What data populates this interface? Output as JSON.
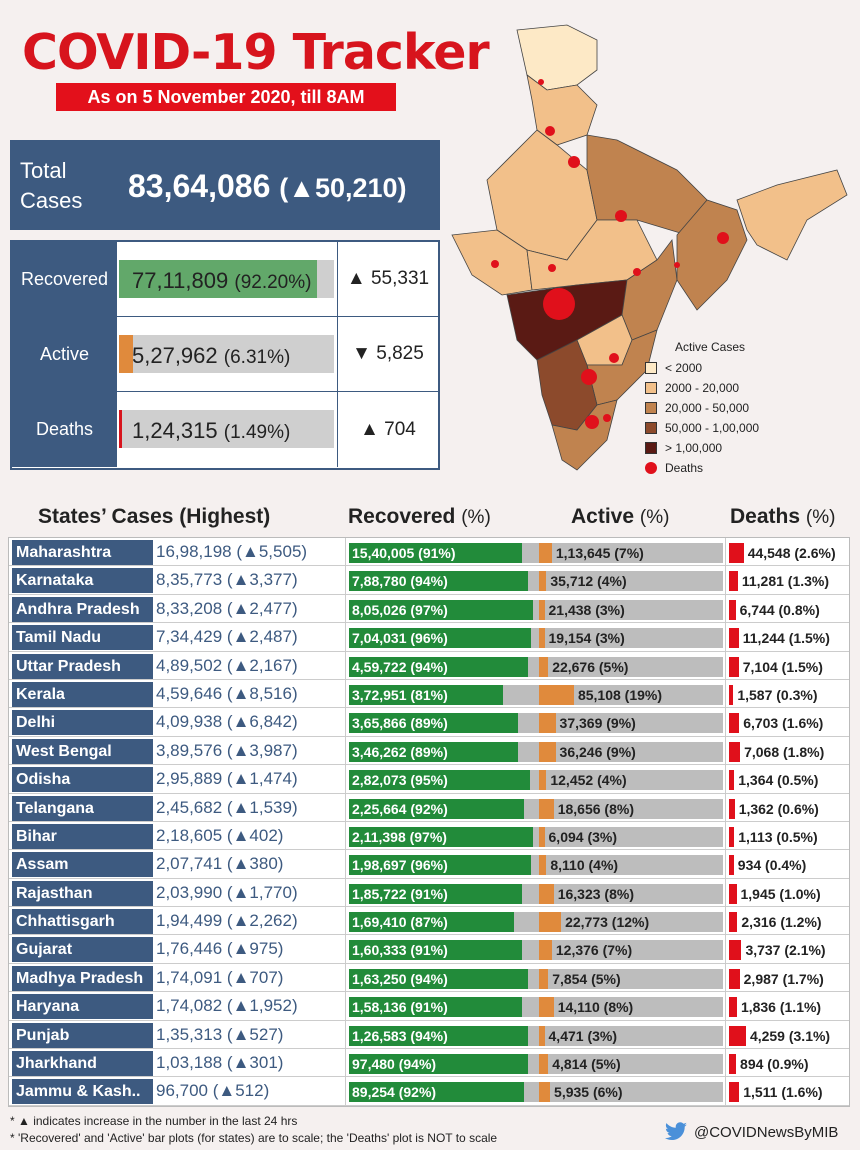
{
  "header": {
    "title": "COVID-19 Tracker",
    "subtitle": "As on 5 November 2020, till 8AM"
  },
  "total": {
    "label": "Total Cases",
    "value": "83,64,086",
    "delta": "(▲50,210)"
  },
  "summary": [
    {
      "label": "Recovered",
      "value": "77,11,809",
      "pct": "(92.20%)",
      "fraction": 0.922,
      "color": "#62a86a",
      "delta": "▲ 55,331"
    },
    {
      "label": "Active",
      "value": "5,27,962",
      "pct": "(6.31%)",
      "fraction": 0.0631,
      "color": "#e08a3c",
      "delta": "▼ 5,825"
    },
    {
      "label": "Deaths",
      "value": "1,24,315",
      "pct": "(1.49%)",
      "fraction": 0.0149,
      "color": "#d7141d",
      "delta": "▲ 704"
    }
  ],
  "legend": {
    "title": "Active Cases",
    "items": [
      {
        "label": "< 2000",
        "color": "#fde9c6"
      },
      {
        "label": "2000 - 20,000",
        "color": "#f2c08a"
      },
      {
        "label": "20,000 - 50,000",
        "color": "#c0834f"
      },
      {
        "label": "50,000 - 1,00,000",
        "color": "#8c4a2c"
      },
      {
        "label": "> 1,00,000",
        "color": "#5a1a14"
      }
    ],
    "deaths_label": "Deaths"
  },
  "table_headers": {
    "states": "States’ Cases (Highest)",
    "recovered": "Recovered",
    "active": "Active",
    "deaths": "Deaths",
    "pct": "(%)"
  },
  "chart_data": {
    "type": "bar",
    "categories": [
      "Maharashtra",
      "Karnataka",
      "Andhra Pradesh",
      "Tamil Nadu",
      "Uttar Pradesh",
      "Kerala",
      "Delhi",
      "West Bengal",
      "Odisha",
      "Telangana",
      "Bihar",
      "Assam",
      "Rajasthan",
      "Chhattisgarh",
      "Gujarat",
      "Madhya Pradesh",
      "Haryana",
      "Punjab",
      "Jharkhand",
      "Jammu & Kash.."
    ],
    "cases": [
      "16,98,198",
      "8,35,773",
      "8,33,208",
      "7,34,429",
      "4,89,502",
      "4,59,646",
      "4,09,938",
      "3,89,576",
      "2,95,889",
      "2,45,682",
      "2,18,605",
      "2,07,741",
      "2,03,990",
      "1,94,499",
      "1,76,446",
      "1,74,091",
      "1,74,082",
      "1,35,313",
      "1,03,188",
      "96,700"
    ],
    "cases_delta": [
      "▲5,505",
      "▲3,377",
      "▲2,477",
      "▲2,487",
      "▲2,167",
      "▲8,516",
      "▲6,842",
      "▲3,987",
      "▲1,474",
      "▲1,539",
      "▲402",
      "▲380",
      "▲1,770",
      "▲2,262",
      "▲975",
      "▲707",
      "▲1,952",
      "▲527",
      "▲301",
      "▲512"
    ],
    "series": [
      {
        "name": "Recovered",
        "labels": [
          "15,40,005 (91%)",
          "7,88,780 (94%)",
          "8,05,026 (97%)",
          "7,04,031 (96%)",
          "4,59,722 (94%)",
          "3,72,951 (81%)",
          "3,65,866 (89%)",
          "3,46,262 (89%)",
          "2,82,073 (95%)",
          "2,25,664 (92%)",
          "2,11,398 (97%)",
          "1,98,697 (96%)",
          "1,85,722 (91%)",
          "1,69,410 (87%)",
          "1,60,333 (91%)",
          "1,63,250 (94%)",
          "1,58,136 (91%)",
          "1,26,583 (94%)",
          "97,480 (94%)",
          "89,254 (92%)"
        ],
        "values": [
          91,
          94,
          97,
          96,
          94,
          81,
          89,
          89,
          95,
          92,
          97,
          96,
          91,
          87,
          91,
          94,
          91,
          94,
          94,
          92
        ],
        "color": "#228b3a"
      },
      {
        "name": "Active",
        "labels": [
          "1,13,645 (7%)",
          "35,712 (4%)",
          "21,438 (3%)",
          "19,154 (3%)",
          "22,676 (5%)",
          "85,108 (19%)",
          "37,369 (9%)",
          "36,246 (9%)",
          "12,452 (4%)",
          "18,656 (8%)",
          "6,094 (3%)",
          "8,110 (4%)",
          "16,323 (8%)",
          "22,773 (12%)",
          "12,376 (7%)",
          "7,854 (5%)",
          "14,110 (8%)",
          "4,471 (3%)",
          "4,814 (5%)",
          "5,935 (6%)"
        ],
        "values": [
          7,
          4,
          3,
          3,
          5,
          19,
          9,
          9,
          4,
          8,
          3,
          4,
          8,
          12,
          7,
          5,
          8,
          3,
          5,
          6
        ],
        "color": "#e08a3c"
      },
      {
        "name": "Deaths",
        "labels": [
          "44,548 (2.6%)",
          "11,281 (1.3%)",
          "6,744 (0.8%)",
          "11,244 (1.5%)",
          "7,104 (1.5%)",
          "1,587 (0.3%)",
          "6,703 (1.6%)",
          "7,068 (1.8%)",
          "1,364 (0.5%)",
          "1,362 (0.6%)",
          "1,113 (0.5%)",
          "934 (0.4%)",
          "1,945 (1.0%)",
          "2,316 (1.2%)",
          "3,737 (2.1%)",
          "2,987 (1.7%)",
          "1,836 (1.1%)",
          "4,259 (3.1%)",
          "894 (0.9%)",
          "1,511 (1.6%)"
        ],
        "values": [
          2.6,
          1.3,
          0.8,
          1.5,
          1.5,
          0.3,
          1.6,
          1.8,
          0.5,
          0.6,
          0.5,
          0.4,
          1.0,
          1.2,
          2.1,
          1.7,
          1.1,
          3.1,
          0.9,
          1.6
        ],
        "color": "#e0101b"
      }
    ]
  },
  "footer": {
    "note1": "* ▲ indicates increase in the number in the last 24 hrs",
    "note2": "* 'Recovered' and 'Active' bar plots (for states) are to scale; the 'Deaths' plot is NOT to scale",
    "handle": "@COVIDNewsByMIB"
  }
}
